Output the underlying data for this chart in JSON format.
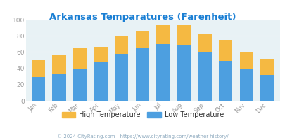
{
  "title": "Arkansas Temparatures (Farenheit)",
  "title_color": "#1a7fd4",
  "months": [
    "Jan",
    "Feb",
    "Mar",
    "Apr",
    "May",
    "Jun",
    "Jul",
    "Aug",
    "Sep",
    "Oct",
    "Nov",
    "Dec"
  ],
  "low_temps": [
    29,
    33,
    40,
    48,
    58,
    65,
    70,
    68,
    60,
    49,
    40,
    32
  ],
  "high_temps": [
    21,
    24,
    25,
    18,
    22,
    20,
    23,
    25,
    23,
    26,
    20,
    20
  ],
  "low_color": "#4d9fe0",
  "high_color": "#f5b942",
  "bg_color": "#e8f2f5",
  "ylim": [
    0,
    100
  ],
  "yticks": [
    0,
    20,
    40,
    60,
    80,
    100
  ],
  "footer": "© 2024 CityRating.com - https://www.cityrating.com/weather-history/",
  "footer_color": "#8eaabf",
  "legend_high": "High Temperature",
  "legend_low": "Low Temperature"
}
